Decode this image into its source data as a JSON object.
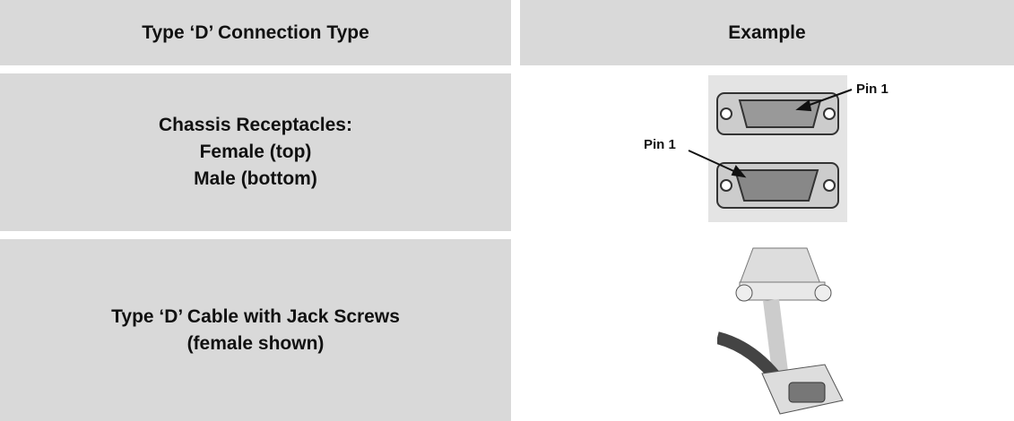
{
  "table": {
    "header": [
      "Type ‘D’ Connection Type",
      "Example"
    ],
    "rows": [
      {
        "lines": [
          "Chassis Receptacles:",
          "Female (top)",
          "Male (bottom)"
        ],
        "callouts": [
          "Pin 1",
          "Pin 1"
        ]
      },
      {
        "lines": [
          "Type ‘D’ Cable with Jack Screws",
          "(female shown)"
        ]
      }
    ]
  }
}
